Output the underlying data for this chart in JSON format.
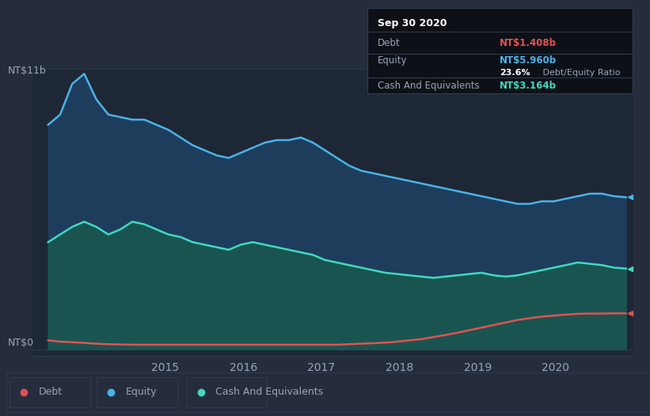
{
  "bg_color": "#252d3d",
  "plot_bg_color": "#1e2736",
  "title_box": {
    "date": "Sep 30 2020",
    "debt_label": "Debt",
    "debt_value": "NT$1.408b",
    "equity_label": "Equity",
    "equity_value": "NT$5.960b",
    "ratio_bold": "23.6%",
    "ratio_text": " Debt/Equity Ratio",
    "cash_label": "Cash And Equivalents",
    "cash_value": "NT$3.164b"
  },
  "ylabel_top": "NT$11b",
  "ylabel_bottom": "NT$0",
  "x_ticks": [
    "2015",
    "2016",
    "2017",
    "2018",
    "2019",
    "2020"
  ],
  "x_tick_pos": [
    2015,
    2016,
    2017,
    2018,
    2019,
    2020
  ],
  "colors": {
    "debt": "#e05252",
    "equity": "#4ab3e8",
    "cash": "#40d9c0",
    "equity_fill": "#1e3d5c",
    "cash_fill": "#1a5450",
    "text": "#9aa5ba",
    "grid": "#2e3a4e",
    "tooltip_bg": "#0d1117",
    "tooltip_border": "#333d50"
  },
  "legend": {
    "debt": "Debt",
    "equity": "Equity",
    "cash": "Cash And Equivalents"
  },
  "equity_data": [
    8.8,
    9.2,
    10.4,
    10.8,
    9.8,
    9.2,
    9.1,
    9.0,
    9.0,
    8.8,
    8.6,
    8.3,
    8.0,
    7.8,
    7.6,
    7.5,
    7.7,
    7.9,
    8.1,
    8.2,
    8.2,
    8.3,
    8.1,
    7.8,
    7.5,
    7.2,
    7.0,
    6.9,
    6.8,
    6.7,
    6.6,
    6.5,
    6.4,
    6.3,
    6.2,
    6.1,
    6.0,
    5.9,
    5.8,
    5.7,
    5.7,
    5.8,
    5.8,
    5.9,
    6.0,
    6.1,
    6.1,
    6.0,
    5.96
  ],
  "cash_data": [
    4.2,
    4.5,
    4.8,
    5.0,
    4.8,
    4.5,
    4.7,
    5.0,
    4.9,
    4.7,
    4.5,
    4.4,
    4.2,
    4.1,
    4.0,
    3.9,
    4.1,
    4.2,
    4.1,
    4.0,
    3.9,
    3.8,
    3.7,
    3.5,
    3.4,
    3.3,
    3.2,
    3.1,
    3.0,
    2.95,
    2.9,
    2.85,
    2.8,
    2.85,
    2.9,
    2.95,
    3.0,
    2.9,
    2.85,
    2.9,
    3.0,
    3.1,
    3.2,
    3.3,
    3.4,
    3.35,
    3.3,
    3.2,
    3.164
  ],
  "debt_data": [
    0.35,
    0.3,
    0.28,
    0.25,
    0.22,
    0.2,
    0.19,
    0.18,
    0.18,
    0.18,
    0.18,
    0.18,
    0.18,
    0.18,
    0.18,
    0.18,
    0.18,
    0.18,
    0.18,
    0.18,
    0.18,
    0.18,
    0.18,
    0.18,
    0.18,
    0.2,
    0.22,
    0.24,
    0.26,
    0.3,
    0.35,
    0.4,
    0.48,
    0.56,
    0.65,
    0.75,
    0.85,
    0.95,
    1.05,
    1.15,
    1.22,
    1.28,
    1.32,
    1.36,
    1.39,
    1.4,
    1.4,
    1.41,
    1.408
  ],
  "xlim_start": 2013.3,
  "xlim_end": 2021.0,
  "ylim_top": 11.0,
  "ylim_bottom": -0.25,
  "n_points": 49,
  "year_start": 2013.5,
  "year_end": 2020.9
}
